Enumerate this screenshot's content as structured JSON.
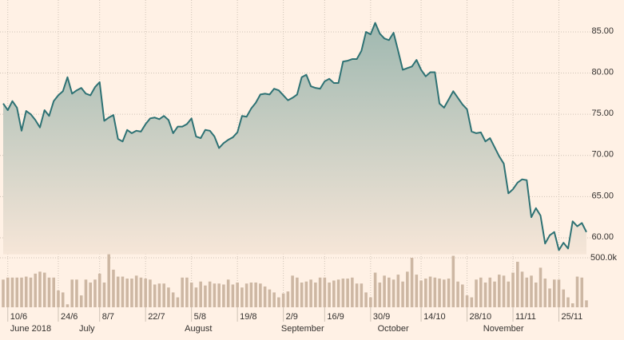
{
  "chart_data": {
    "type": "line",
    "grid": true,
    "area": true,
    "ylim": [
      58,
      88
    ],
    "yticks": [
      {
        "value": 60,
        "label": "60.00"
      },
      {
        "value": 65,
        "label": "65.00"
      },
      {
        "value": 70,
        "label": "70.00"
      },
      {
        "value": 75,
        "label": "75.00"
      },
      {
        "value": 80,
        "label": "80.00"
      },
      {
        "value": 85,
        "label": "85.00"
      }
    ],
    "y2lim": [
      0,
      600000
    ],
    "y2ticks": [
      {
        "value": 500000,
        "label": "500.0k"
      }
    ],
    "xlim": [
      0,
      127
    ],
    "xticks": [
      {
        "value": 1,
        "label": "10/6"
      },
      {
        "value": 12,
        "label": "24/6"
      },
      {
        "value": 21,
        "label": "8/7"
      },
      {
        "value": 31,
        "label": "22/7"
      },
      {
        "value": 41,
        "label": "5/8"
      },
      {
        "value": 51,
        "label": "19/8"
      },
      {
        "value": 61,
        "label": "2/9"
      },
      {
        "value": 70,
        "label": "16/9"
      },
      {
        "value": 80,
        "label": "30/9"
      },
      {
        "value": 91,
        "label": "14/10"
      },
      {
        "value": 101,
        "label": "28/10"
      },
      {
        "value": 111,
        "label": "11/11"
      },
      {
        "value": 121,
        "label": "25/11"
      }
    ],
    "xticks_secondary": [
      {
        "value": 1,
        "label": "June 2018"
      },
      {
        "value": 16,
        "label": "July"
      },
      {
        "value": 39,
        "label": "August"
      },
      {
        "value": 60,
        "label": "September"
      },
      {
        "value": 81,
        "label": "October"
      },
      {
        "value": 104,
        "label": "November"
      }
    ],
    "series": [
      {
        "color": "#2e7274",
        "values": [
          76.3,
          75.5,
          76.6,
          75.8,
          73,
          75.4,
          75,
          74.3,
          73.4,
          75.5,
          74.8,
          76.6,
          77.3,
          77.8,
          79.5,
          77.5,
          77.9,
          78.2,
          77.5,
          77.3,
          78.3,
          78.9,
          74.2,
          74.6,
          74.9,
          72,
          71.7,
          73.1,
          72.7,
          73,
          72.9,
          73.8,
          74.5,
          74.6,
          74.4,
          74.8,
          74.3,
          72.7,
          73.5,
          73.5,
          73.8,
          74.5,
          72.3,
          72.1,
          73.1,
          73,
          72.3,
          70.9,
          71.5,
          71.9,
          72.2,
          72.8,
          74.8,
          74.7,
          75.7,
          76.4,
          77.4,
          77.5,
          77.4,
          78.1,
          77.9,
          77.3,
          76.7,
          77,
          77.4,
          79.5,
          79.8,
          78.4,
          78.2,
          78.1,
          79,
          79.3,
          78.8,
          78.8,
          81.4,
          81.5,
          81.7,
          81.7,
          82.7,
          85,
          84.7,
          86.1,
          84.8,
          84.2,
          84,
          84.9,
          82.7,
          80.4,
          80.6,
          80.8,
          81.6,
          80.4,
          79.6,
          80.1,
          80.1,
          76.3,
          75.8,
          76.8,
          77.8,
          77,
          76.2,
          75.6,
          72.9,
          72.7,
          72.8,
          71.7,
          72.1,
          71,
          69.9,
          69,
          65.4,
          65.9,
          66.7,
          67.1,
          67,
          62.5,
          63.6,
          62.7,
          59.3,
          60.3,
          60.7,
          58.5,
          59.4,
          58.7,
          62,
          61.4,
          61.8,
          60.7
        ]
      },
      {
        "type": "bar",
        "axis": "y2",
        "color": "#cdb7a3",
        "values": [
          280000,
          300000,
          300000,
          300000,
          300000,
          310000,
          300000,
          340000,
          360000,
          350000,
          300000,
          300000,
          170000,
          150000,
          30000,
          280000,
          280000,
          120000,
          280000,
          250000,
          280000,
          340000,
          250000,
          560000,
          380000,
          310000,
          310000,
          290000,
          290000,
          320000,
          300000,
          290000,
          280000,
          230000,
          240000,
          240000,
          200000,
          150000,
          100000,
          300000,
          300000,
          250000,
          200000,
          260000,
          220000,
          260000,
          240000,
          240000,
          230000,
          280000,
          230000,
          250000,
          200000,
          240000,
          250000,
          250000,
          240000,
          210000,
          180000,
          150000,
          100000,
          140000,
          160000,
          320000,
          300000,
          250000,
          260000,
          280000,
          250000,
          300000,
          300000,
          250000,
          270000,
          280000,
          290000,
          290000,
          300000,
          240000,
          240000,
          150000,
          100000,
          350000,
          250000,
          320000,
          300000,
          280000,
          330000,
          260000,
          360000,
          500000,
          330000,
          270000,
          290000,
          310000,
          300000,
          290000,
          280000,
          290000,
          520000,
          260000,
          230000,
          120000,
          100000,
          280000,
          300000,
          250000,
          300000,
          260000,
          330000,
          320000,
          260000,
          350000,
          460000,
          360000,
          300000,
          320000,
          250000,
          400000,
          290000,
          190000,
          280000,
          280000,
          180000,
          100000,
          40000,
          310000,
          300000,
          70000
        ]
      }
    ]
  }
}
